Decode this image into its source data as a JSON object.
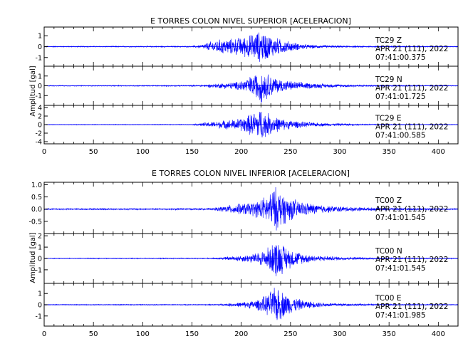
{
  "colors": {
    "trace": "#0000ff",
    "frame": "#000000",
    "background": "#ffffff"
  },
  "chart_data": [
    {
      "type": "line",
      "title": "E TORRES COLON NIVEL SUPERIOR [ACELERACION]",
      "ylabel": "Amplitud [gal]",
      "xlabel": "",
      "xlim": [
        0,
        420
      ],
      "xticks": [
        0,
        50,
        100,
        150,
        200,
        250,
        300,
        350,
        400
      ],
      "xtick_labels": [
        "0",
        "50",
        "100",
        "150",
        "200",
        "250",
        "300",
        "350",
        "400"
      ],
      "grid": false,
      "panels": [
        {
          "station": "TC29",
          "component": "Z",
          "date": "APR 21 (111), 2022",
          "time": "07:41:00.375",
          "ylim": [
            -1.8,
            1.8
          ],
          "yticks": [
            1,
            0,
            -1
          ],
          "ytick_labels": [
            "1",
            "0",
            "-1"
          ],
          "envelope_x": [
            0,
            150,
            160,
            170,
            180,
            190,
            200,
            210,
            215,
            220,
            225,
            230,
            240,
            250,
            260,
            270,
            280,
            300,
            320,
            340,
            360,
            380,
            400,
            420
          ],
          "envelope_y": [
            0.05,
            0.06,
            0.2,
            0.55,
            0.75,
            0.8,
            0.95,
            1.25,
            1.45,
            1.6,
            1.4,
            1.1,
            0.75,
            0.5,
            0.3,
            0.2,
            0.15,
            0.1,
            0.08,
            0.07,
            0.06,
            0.06,
            0.05,
            0.05
          ]
        },
        {
          "station": "TC29",
          "component": "N",
          "date": "APR 21 (111), 2022",
          "time": "07:41:01.725",
          "ylim": [
            -2.0,
            2.0
          ],
          "yticks": [
            1,
            0,
            -1
          ],
          "ytick_labels": [
            "1",
            "0",
            "-1"
          ],
          "envelope_x": [
            0,
            150,
            165,
            180,
            195,
            205,
            215,
            220,
            225,
            235,
            245,
            260,
            275,
            290,
            310,
            330,
            360,
            390,
            420
          ],
          "envelope_y": [
            0.05,
            0.07,
            0.15,
            0.3,
            0.45,
            0.8,
            1.4,
            1.9,
            1.5,
            0.9,
            0.6,
            0.4,
            0.28,
            0.2,
            0.15,
            0.1,
            0.08,
            0.06,
            0.05
          ]
        },
        {
          "station": "TC29",
          "component": "E",
          "date": "APR 21 (111), 2022",
          "time": "07:41:00.585",
          "ylim": [
            -4.5,
            4.5
          ],
          "yticks": [
            4,
            2,
            0,
            -2,
            -4
          ],
          "ytick_labels": [
            "4",
            "2",
            "0",
            "-2",
            "-4"
          ],
          "envelope_x": [
            0,
            150,
            165,
            180,
            195,
            205,
            215,
            220,
            225,
            235,
            245,
            260,
            275,
            290,
            310,
            330,
            360,
            390,
            420
          ],
          "envelope_y": [
            0.08,
            0.1,
            0.6,
            1.0,
            1.4,
            2.2,
            3.5,
            4.3,
            3.2,
            2.0,
            1.3,
            0.8,
            0.5,
            0.35,
            0.25,
            0.18,
            0.12,
            0.1,
            0.08
          ]
        }
      ]
    },
    {
      "type": "line",
      "title": "E TORRES COLON NIVEL INFERIOR [ACELERACION]",
      "ylabel": "Amplitud [gal]",
      "xlabel": "",
      "xlim": [
        0,
        420
      ],
      "xticks": [
        0,
        50,
        100,
        150,
        200,
        250,
        300,
        350,
        400
      ],
      "xtick_labels": [
        "0",
        "50",
        "100",
        "150",
        "200",
        "250",
        "300",
        "350",
        "400"
      ],
      "grid": false,
      "panels": [
        {
          "station": "TC00",
          "component": "Z",
          "date": "APR 21 (111), 2022",
          "time": "07:41:01.545",
          "ylim": [
            -1.0,
            1.1
          ],
          "yticks": [
            1.0,
            0.5,
            0.0,
            -0.5
          ],
          "ytick_labels": [
            "1.0",
            "0.5",
            "0.0",
            "-0.5"
          ],
          "envelope_x": [
            0,
            170,
            180,
            190,
            200,
            210,
            220,
            228,
            234,
            240,
            248,
            260,
            275,
            290,
            310,
            330,
            360,
            390,
            420
          ],
          "envelope_y": [
            0.03,
            0.04,
            0.12,
            0.2,
            0.25,
            0.3,
            0.45,
            0.7,
            1.0,
            0.8,
            0.55,
            0.35,
            0.22,
            0.15,
            0.1,
            0.07,
            0.05,
            0.04,
            0.03
          ]
        },
        {
          "station": "TC00",
          "component": "N",
          "date": "APR 21 (111), 2022",
          "time": "07:41:01.545",
          "ylim": [
            -2.2,
            2.2
          ],
          "yticks": [
            2,
            1,
            0,
            -1
          ],
          "ytick_labels": [
            "2",
            "1",
            "0",
            "-1"
          ],
          "envelope_x": [
            0,
            170,
            185,
            200,
            215,
            225,
            232,
            236,
            242,
            250,
            262,
            275,
            290,
            310,
            330,
            360,
            390,
            420
          ],
          "envelope_y": [
            0.04,
            0.05,
            0.15,
            0.3,
            0.5,
            0.9,
            1.5,
            2.0,
            1.4,
            0.9,
            0.5,
            0.3,
            0.2,
            0.14,
            0.1,
            0.07,
            0.05,
            0.04
          ]
        },
        {
          "station": "TC00",
          "component": "E",
          "date": "APR 21 (111), 2022",
          "time": "07:41:01.985",
          "ylim": [
            -1.9,
            1.9
          ],
          "yticks": [
            1,
            0,
            -1
          ],
          "ytick_labels": [
            "1",
            "0",
            "-1"
          ],
          "envelope_x": [
            0,
            170,
            185,
            200,
            215,
            225,
            232,
            236,
            242,
            250,
            262,
            275,
            290,
            310,
            330,
            360,
            390,
            420
          ],
          "envelope_y": [
            0.04,
            0.05,
            0.12,
            0.25,
            0.45,
            0.9,
            1.5,
            1.8,
            1.3,
            0.85,
            0.45,
            0.28,
            0.18,
            0.12,
            0.09,
            0.06,
            0.05,
            0.04
          ]
        }
      ]
    }
  ]
}
